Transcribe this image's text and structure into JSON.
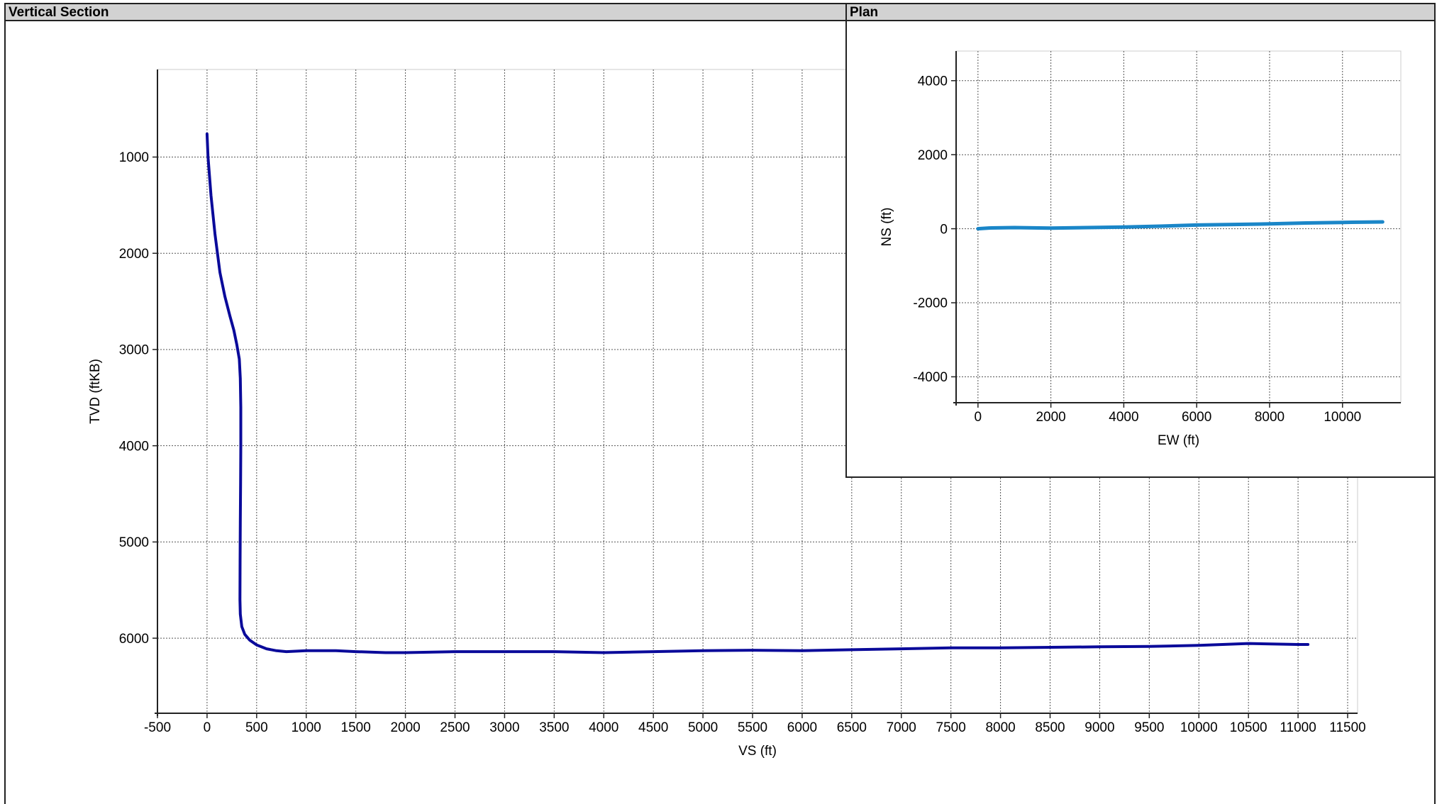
{
  "panels": {
    "vertical_section": {
      "title": "Vertical Section"
    },
    "plan": {
      "title": "Plan"
    }
  },
  "colors": {
    "vs_line": "#0a0a9a",
    "plan_line": "#1a86c8",
    "grid": "#555555",
    "header_bg": "#d2d2d2"
  },
  "chart_data": [
    {
      "type": "line",
      "title": "Vertical Section",
      "xlabel": "VS (ft)",
      "ylabel": "TVD (ftKB)",
      "xlim": [
        -500,
        11600
      ],
      "ylim": [
        6780,
        90
      ],
      "y_inverted": true,
      "grid": true,
      "x_ticks": [
        -500,
        0,
        500,
        1000,
        1500,
        2000,
        2500,
        3000,
        3500,
        4000,
        4500,
        5000,
        5500,
        6000,
        6500,
        7000,
        7500,
        8000,
        8500,
        9000,
        9500,
        10000,
        10500,
        11000,
        11500
      ],
      "y_ticks": [
        1000,
        2000,
        3000,
        4000,
        5000,
        6000
      ],
      "series": [
        {
          "x": [
            0,
            10,
            40,
            80,
            130,
            180,
            230,
            270,
            300,
            325,
            335,
            340,
            340,
            338,
            335,
            333,
            332,
            335,
            350,
            380,
            430,
            500,
            600,
            700,
            800,
            1000,
            1300,
            1500,
            1800,
            2000,
            2500,
            3000,
            3500,
            4000,
            4500,
            5000,
            5500,
            6000,
            6500,
            7000,
            7500,
            8000,
            8500,
            9000,
            9500,
            10000,
            10500,
            11000,
            11100
          ],
          "y": [
            760,
            1000,
            1400,
            1800,
            2200,
            2450,
            2650,
            2800,
            2950,
            3100,
            3300,
            3600,
            4000,
            4400,
            4800,
            5200,
            5600,
            5750,
            5880,
            5960,
            6020,
            6070,
            6110,
            6130,
            6140,
            6130,
            6130,
            6140,
            6150,
            6150,
            6140,
            6140,
            6140,
            6150,
            6140,
            6130,
            6125,
            6130,
            6120,
            6110,
            6100,
            6100,
            6095,
            6090,
            6085,
            6075,
            6055,
            6065,
            6065
          ]
        }
      ]
    },
    {
      "type": "line",
      "title": "Plan",
      "xlabel": "EW (ft)",
      "ylabel": "NS (ft)",
      "xlim": [
        -600,
        11600
      ],
      "ylim": [
        -4700,
        4800
      ],
      "grid": true,
      "x_ticks": [
        0,
        2000,
        4000,
        6000,
        8000,
        10000
      ],
      "y_ticks": [
        -4000,
        -2000,
        0,
        2000,
        4000
      ],
      "series": [
        {
          "x": [
            0,
            300,
            1000,
            2000,
            3000,
            4000,
            5000,
            6000,
            7000,
            8000,
            9000,
            10000,
            11100
          ],
          "y": [
            0,
            20,
            30,
            15,
            30,
            45,
            70,
            100,
            115,
            130,
            155,
            170,
            185
          ]
        }
      ]
    }
  ]
}
